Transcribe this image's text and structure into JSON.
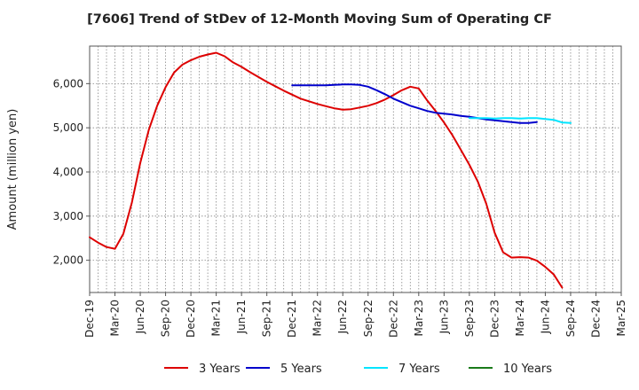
{
  "chart_data": {
    "type": "line",
    "title": "[7606]  Trend of StDev of 12-Month Moving Sum of Operating CF",
    "xlabel": "",
    "ylabel": "Amount (million yen)",
    "x_tick_labels": [
      "Dec-19",
      "Mar-20",
      "Jun-20",
      "Sep-20",
      "Dec-20",
      "Mar-21",
      "Jun-21",
      "Sep-21",
      "Dec-21",
      "Mar-22",
      "Jun-22",
      "Sep-22",
      "Dec-22",
      "Mar-23",
      "Jun-23",
      "Sep-23",
      "Dec-23",
      "Mar-24",
      "Jun-24",
      "Sep-24",
      "Dec-24",
      "Mar-25"
    ],
    "y_ticks": [
      2000,
      3000,
      4000,
      5000,
      6000
    ],
    "y_tick_labels": [
      "2,000",
      "3,000",
      "4,000",
      "5,000",
      "6,000"
    ],
    "ylim": [
      1270,
      6850
    ],
    "grid": true,
    "legend_position": "bottom",
    "series": [
      {
        "name": "3 Years",
        "color": "#dd0000",
        "start": "Dec-19",
        "values": [
          2520,
          2400,
          2300,
          2260,
          2600,
          3300,
          4200,
          4950,
          5500,
          5920,
          6250,
          6430,
          6530,
          6610,
          6660,
          6700,
          6620,
          6480,
          6380,
          6260,
          6150,
          6040,
          5940,
          5840,
          5750,
          5660,
          5600,
          5540,
          5490,
          5440,
          5410,
          5420,
          5460,
          5500,
          5560,
          5640,
          5740,
          5850,
          5930,
          5890,
          5620,
          5380,
          5120,
          4830,
          4500,
          4160,
          3780,
          3280,
          2620,
          2180,
          2060,
          2070,
          2060,
          1990,
          1850,
          1680,
          1380
        ]
      },
      {
        "name": "5 Years",
        "color": "#0000cc",
        "start": "Dec-21",
        "values": [
          5960,
          5960,
          5960,
          5960,
          5960,
          5970,
          5980,
          5980,
          5970,
          5930,
          5850,
          5760,
          5660,
          5580,
          5500,
          5440,
          5380,
          5340,
          5320,
          5300,
          5270,
          5250,
          5220,
          5190,
          5170,
          5150,
          5130,
          5110,
          5110,
          5130
        ]
      },
      {
        "name": "7 Years",
        "color": "#00e5ff",
        "start": "Sep-23",
        "values": [
          5220,
          5220,
          5220,
          5210,
          5220,
          5220,
          5210,
          5220,
          5220,
          5200,
          5180,
          5120,
          5110
        ]
      },
      {
        "name": "10 Years",
        "color": "#1a7a1a",
        "start": "Dec-24",
        "values": []
      }
    ]
  }
}
